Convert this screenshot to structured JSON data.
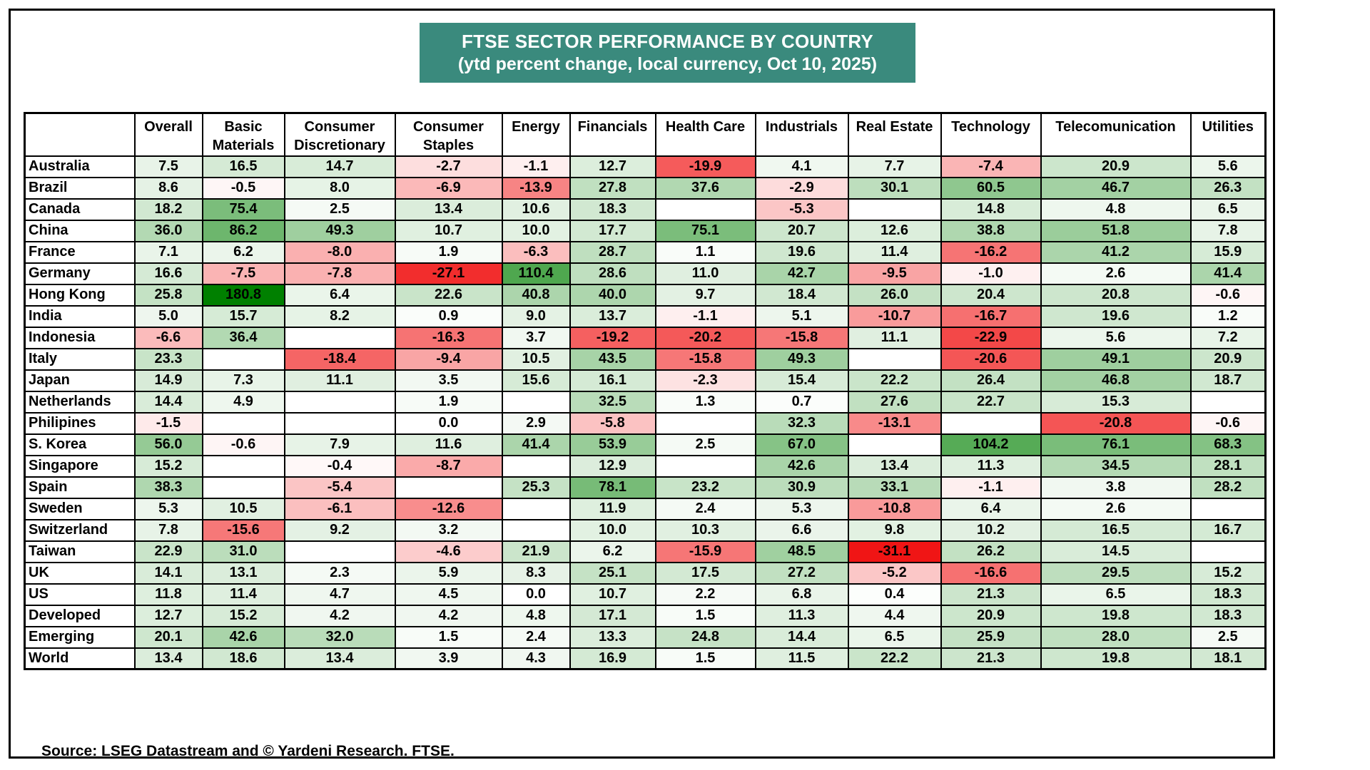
{
  "title": {
    "line1": "FTSE SECTOR PERFORMANCE BY COUNTRY",
    "line2": "(ytd percent change, local currency, Oct 10, 2025)",
    "bg_color": "#3a8a7d",
    "text_color": "#ffffff"
  },
  "source_note": "Source: LSEG Datastream and © Yardeni Research. FTSE.",
  "chart_data": {
    "type": "heatmap",
    "title": "FTSE SECTOR PERFORMANCE BY COUNTRY",
    "subtitle": "(ytd percent change, local currency, Oct 10, 2025)",
    "unit": "ytd percent change, local currency",
    "as_of_date": "Oct 10, 2025",
    "columns": [
      "Overall",
      "Basic Materials",
      "Consumer Discretionary",
      "Consumer Staples",
      "Energy",
      "Financials",
      "Health Care",
      "Industrials",
      "Real Estate",
      "Technology",
      "Telecomunication",
      "Utilities"
    ],
    "rows": [
      {
        "country": "Australia",
        "values": [
          7.5,
          16.5,
          14.7,
          -2.7,
          -1.1,
          12.7,
          -19.9,
          4.1,
          7.7,
          -7.4,
          20.9,
          5.6
        ]
      },
      {
        "country": "Brazil",
        "values": [
          8.6,
          -0.5,
          8.0,
          -6.9,
          -13.9,
          27.8,
          37.6,
          -2.9,
          30.1,
          60.5,
          46.7,
          26.3
        ]
      },
      {
        "country": "Canada",
        "values": [
          18.2,
          75.4,
          2.5,
          13.4,
          10.6,
          18.3,
          null,
          -5.3,
          null,
          14.8,
          4.8,
          6.5
        ]
      },
      {
        "country": "China",
        "values": [
          36.0,
          86.2,
          49.3,
          10.7,
          10.0,
          17.7,
          75.1,
          20.7,
          12.6,
          38.8,
          51.8,
          7.8
        ]
      },
      {
        "country": "France",
        "values": [
          7.1,
          6.2,
          -8.0,
          1.9,
          -6.3,
          28.7,
          1.1,
          19.6,
          11.4,
          -16.2,
          41.2,
          15.9
        ]
      },
      {
        "country": "Germany",
        "values": [
          16.6,
          -7.5,
          -7.8,
          -27.1,
          110.4,
          28.6,
          11.0,
          42.7,
          -9.5,
          -1.0,
          2.6,
          41.4
        ]
      },
      {
        "country": "Hong Kong",
        "values": [
          25.8,
          180.8,
          6.4,
          22.6,
          40.8,
          40.0,
          9.7,
          18.4,
          26.0,
          20.4,
          20.8,
          -0.6
        ]
      },
      {
        "country": "India",
        "values": [
          5.0,
          15.7,
          8.2,
          0.9,
          9.0,
          13.7,
          -1.1,
          5.1,
          -10.7,
          -16.7,
          19.6,
          1.2
        ]
      },
      {
        "country": "Indonesia",
        "values": [
          -6.6,
          36.4,
          null,
          -16.3,
          3.7,
          -19.2,
          -20.2,
          -15.8,
          11.1,
          -22.9,
          5.6,
          7.2
        ]
      },
      {
        "country": "Italy",
        "values": [
          23.3,
          null,
          -18.4,
          -9.4,
          10.5,
          43.5,
          -15.8,
          49.3,
          null,
          -20.6,
          49.1,
          20.9
        ]
      },
      {
        "country": "Japan",
        "values": [
          14.9,
          7.3,
          11.1,
          3.5,
          15.6,
          16.1,
          -2.3,
          15.4,
          22.2,
          26.4,
          46.8,
          18.7
        ]
      },
      {
        "country": "Netherlands",
        "values": [
          14.4,
          4.9,
          null,
          1.9,
          null,
          32.5,
          1.3,
          0.7,
          27.6,
          22.7,
          15.3,
          null
        ]
      },
      {
        "country": "Philipines",
        "values": [
          -1.5,
          null,
          null,
          0.0,
          2.9,
          -5.8,
          null,
          32.3,
          -13.1,
          null,
          -20.8,
          -0.6
        ]
      },
      {
        "country": "S. Korea",
        "values": [
          56.0,
          -0.6,
          7.9,
          11.6,
          41.4,
          53.9,
          2.5,
          67.0,
          null,
          104.2,
          76.1,
          68.3
        ]
      },
      {
        "country": "Singapore",
        "values": [
          15.2,
          null,
          -0.4,
          -8.7,
          null,
          12.9,
          null,
          42.6,
          13.4,
          11.3,
          34.5,
          28.1
        ]
      },
      {
        "country": "Spain",
        "values": [
          38.3,
          null,
          -5.4,
          null,
          25.3,
          78.1,
          23.2,
          30.9,
          33.1,
          -1.1,
          3.8,
          28.2
        ]
      },
      {
        "country": "Sweden",
        "values": [
          5.3,
          10.5,
          -6.1,
          -12.6,
          null,
          11.9,
          2.4,
          5.3,
          -10.8,
          6.4,
          2.6,
          null
        ]
      },
      {
        "country": "Switzerland",
        "values": [
          7.8,
          -15.6,
          9.2,
          3.2,
          null,
          10.0,
          10.3,
          6.6,
          9.8,
          10.2,
          16.5,
          16.7
        ]
      },
      {
        "country": "Taiwan",
        "values": [
          22.9,
          31.0,
          null,
          -4.6,
          21.9,
          6.2,
          -15.9,
          48.5,
          -31.1,
          26.2,
          14.5,
          null
        ]
      },
      {
        "country": "UK",
        "values": [
          14.1,
          13.1,
          2.3,
          5.9,
          8.3,
          25.1,
          17.5,
          27.2,
          -5.2,
          -16.6,
          29.5,
          15.2
        ]
      },
      {
        "country": "US",
        "values": [
          11.8,
          11.4,
          4.7,
          4.5,
          0.0,
          10.7,
          2.2,
          6.8,
          0.4,
          21.3,
          6.5,
          18.3
        ]
      },
      {
        "country": "Developed",
        "values": [
          12.7,
          15.2,
          4.2,
          4.2,
          4.8,
          17.1,
          1.5,
          11.3,
          4.4,
          20.9,
          19.8,
          18.3
        ]
      },
      {
        "country": "Emerging",
        "values": [
          20.1,
          42.6,
          32.0,
          1.5,
          2.4,
          13.3,
          24.8,
          14.4,
          6.5,
          25.9,
          28.0,
          2.5
        ]
      },
      {
        "country": "World",
        "values": [
          13.4,
          18.6,
          13.4,
          3.9,
          4.3,
          16.9,
          1.5,
          11.5,
          22.2,
          21.3,
          19.8,
          18.1
        ]
      }
    ],
    "heatmap_colors": {
      "positive": "#008000",
      "negative": "#f01414",
      "blank": "#ffffff",
      "positive_scale_max": 181,
      "negative_scale_max": 31.2
    },
    "legend_position": "none",
    "grid": true
  }
}
